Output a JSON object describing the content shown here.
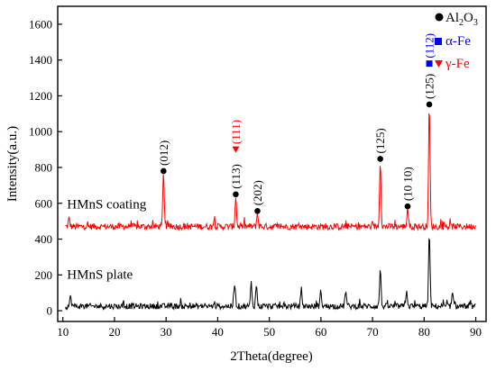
{
  "chart_data": {
    "type": "line",
    "xlabel": "2Theta(degree)",
    "ylabel": "Intensity(a.u.)",
    "xlim": [
      9,
      92
    ],
    "ylim": [
      -60,
      1700
    ],
    "xticks": [
      10,
      20,
      30,
      40,
      50,
      60,
      70,
      80,
      90
    ],
    "yticks": [
      0,
      200,
      400,
      600,
      800,
      1000,
      1200,
      1400,
      1600
    ],
    "legend": {
      "placement": "top-right",
      "entries": [
        {
          "marker": "circle",
          "color": "#000000",
          "label_main": "Al",
          "sub1": "2",
          "mid": "O",
          "sub2": "3"
        },
        {
          "marker": "square",
          "color": "#0000ff",
          "label": "α-Fe"
        },
        {
          "marker": "triangle-down",
          "color": "#ff0000",
          "label": "γ-Fe"
        }
      ]
    },
    "series": [
      {
        "name": "HMnS coating",
        "color": "#ff0000",
        "baseline": 470,
        "noise": 18,
        "x_range": [
          10.5,
          90
        ],
        "peaks": [
          {
            "x": 11.2,
            "y": 515
          },
          {
            "x": 29.5,
            "y": 770
          },
          {
            "x": 39.3,
            "y": 505
          },
          {
            "x": 43.5,
            "y": 640
          },
          {
            "x": 47.7,
            "y": 545
          },
          {
            "x": 71.5,
            "y": 840
          },
          {
            "x": 76.8,
            "y": 575
          },
          {
            "x": 81.0,
            "y": 1145
          }
        ]
      },
      {
        "name": "HMnS plate",
        "color": "#000000",
        "baseline": 25,
        "noise": 16,
        "x_range": [
          10.5,
          90
        ],
        "peaks": [
          {
            "x": 11.5,
            "y": 80
          },
          {
            "x": 43.3,
            "y": 160
          },
          {
            "x": 46.5,
            "y": 155
          },
          {
            "x": 47.5,
            "y": 145
          },
          {
            "x": 56.2,
            "y": 120
          },
          {
            "x": 60.0,
            "y": 110
          },
          {
            "x": 64.8,
            "y": 115
          },
          {
            "x": 71.5,
            "y": 235
          },
          {
            "x": 76.6,
            "y": 120
          },
          {
            "x": 81.0,
            "y": 440
          },
          {
            "x": 85.5,
            "y": 95
          }
        ]
      }
    ],
    "series_labels": [
      {
        "text": "HMnS coating",
        "x": 10.8,
        "y": 570
      },
      {
        "text": "HMnS plate",
        "x": 10.8,
        "y": 180
      }
    ],
    "peak_markers": [
      {
        "x": 29.5,
        "y": 780,
        "marker": "circle",
        "color": "#000000",
        "label": "(012)",
        "label_color": "#000000"
      },
      {
        "x": 43.5,
        "y": 650,
        "marker": "circle",
        "color": "#000000",
        "label": "(113)",
        "label_color": "#000000"
      },
      {
        "x": 43.5,
        "y": 900,
        "marker": "triangle-down",
        "color": "#ff0000",
        "label": "(111)",
        "label_color": "#ff0000"
      },
      {
        "x": 47.7,
        "y": 557,
        "marker": "circle",
        "color": "#000000",
        "label": "(202)",
        "label_color": "#000000"
      },
      {
        "x": 71.5,
        "y": 848,
        "marker": "circle",
        "color": "#000000",
        "label": "(125)",
        "label_color": "#000000"
      },
      {
        "x": 76.8,
        "y": 583,
        "marker": "circle",
        "color": "#000000",
        "label": "(10 10)",
        "label_color": "#000000"
      },
      {
        "x": 81.0,
        "y": 1152,
        "marker": "circle",
        "color": "#000000",
        "label": "(125)",
        "label_color": "#000000"
      },
      {
        "x": 81.0,
        "y": 1380,
        "marker": "square",
        "color": "#0000ff",
        "label": "(112)",
        "label_color": "#0000ff"
      }
    ]
  }
}
